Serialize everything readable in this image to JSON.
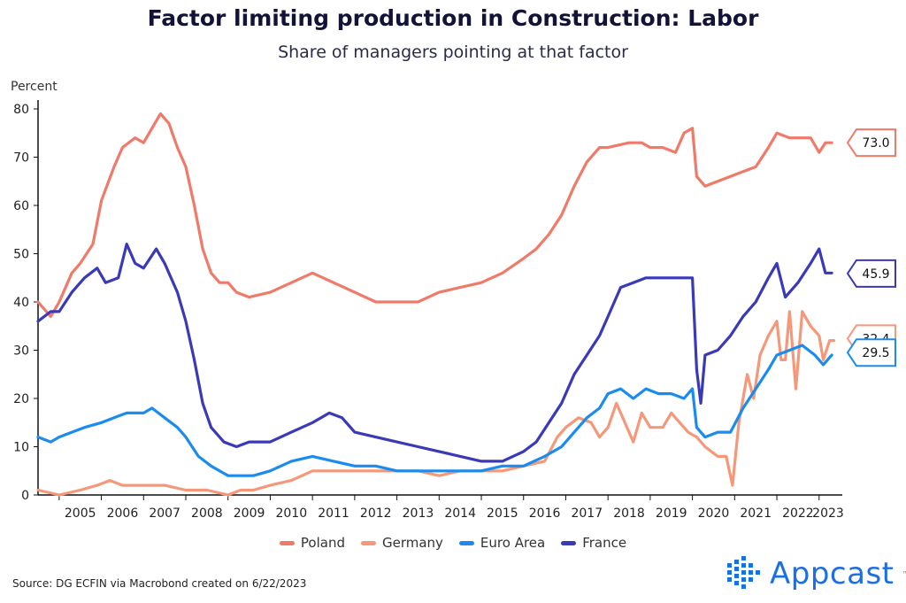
{
  "chart_data": {
    "type": "line",
    "title": "Factor limiting production in Construction: Labor",
    "subtitle": "Share of managers pointing at that factor",
    "ylabel": "Percent",
    "xlabel": "",
    "ylim": [
      0,
      80
    ],
    "yticks": [
      0,
      10,
      20,
      30,
      40,
      50,
      60,
      70,
      80
    ],
    "xlim": [
      2004.5,
      2023.55
    ],
    "xticks": [
      "2005",
      "2006",
      "2007",
      "2008",
      "2009",
      "2010",
      "2011",
      "2012",
      "2013",
      "2014",
      "2015",
      "2016",
      "2017",
      "2018",
      "2019",
      "2020",
      "2021",
      "2022",
      "2023"
    ],
    "grid": false,
    "legend_position": "bottom",
    "source": "Source: DG ECFIN via Macrobond created on 6/22/2023",
    "series": [
      {
        "name": "Poland",
        "color": "#f07a6a",
        "end_label": "73.0",
        "points": [
          [
            2004.5,
            40
          ],
          [
            2004.8,
            37
          ],
          [
            2005.0,
            40
          ],
          [
            2005.3,
            46
          ],
          [
            2005.5,
            48
          ],
          [
            2005.8,
            52
          ],
          [
            2006.0,
            61
          ],
          [
            2006.3,
            68
          ],
          [
            2006.5,
            72
          ],
          [
            2006.8,
            74
          ],
          [
            2007.0,
            73
          ],
          [
            2007.2,
            76
          ],
          [
            2007.4,
            79
          ],
          [
            2007.6,
            77
          ],
          [
            2007.8,
            72
          ],
          [
            2008.0,
            68
          ],
          [
            2008.2,
            60
          ],
          [
            2008.4,
            51
          ],
          [
            2008.6,
            46
          ],
          [
            2008.8,
            44
          ],
          [
            2009.0,
            44
          ],
          [
            2009.2,
            42
          ],
          [
            2009.5,
            41
          ],
          [
            2010.0,
            42
          ],
          [
            2010.5,
            44
          ],
          [
            2011.0,
            46
          ],
          [
            2011.5,
            44
          ],
          [
            2012.0,
            42
          ],
          [
            2012.5,
            40
          ],
          [
            2013.0,
            40
          ],
          [
            2013.5,
            40
          ],
          [
            2014.0,
            42
          ],
          [
            2014.5,
            43
          ],
          [
            2015.0,
            44
          ],
          [
            2015.5,
            46
          ],
          [
            2016.0,
            49
          ],
          [
            2016.3,
            51
          ],
          [
            2016.6,
            54
          ],
          [
            2016.9,
            58
          ],
          [
            2017.2,
            64
          ],
          [
            2017.5,
            69
          ],
          [
            2017.8,
            72
          ],
          [
            2018.0,
            72
          ],
          [
            2018.5,
            73
          ],
          [
            2018.8,
            73
          ],
          [
            2019.0,
            72
          ],
          [
            2019.3,
            72
          ],
          [
            2019.6,
            71
          ],
          [
            2019.8,
            75
          ],
          [
            2020.0,
            76
          ],
          [
            2020.1,
            66
          ],
          [
            2020.3,
            64
          ],
          [
            2020.6,
            65
          ],
          [
            2020.9,
            66
          ],
          [
            2021.2,
            67
          ],
          [
            2021.5,
            68
          ],
          [
            2021.8,
            72
          ],
          [
            2022.0,
            75
          ],
          [
            2022.3,
            74
          ],
          [
            2022.6,
            74
          ],
          [
            2022.8,
            74
          ],
          [
            2023.0,
            71
          ],
          [
            2023.15,
            73
          ],
          [
            2023.3,
            73
          ]
        ]
      },
      {
        "name": "Germany",
        "color": "#f5987a",
        "end_label": "32.4",
        "points": [
          [
            2004.5,
            1
          ],
          [
            2005.0,
            0
          ],
          [
            2005.5,
            1
          ],
          [
            2005.9,
            2
          ],
          [
            2006.2,
            3
          ],
          [
            2006.5,
            2
          ],
          [
            2007.0,
            2
          ],
          [
            2007.5,
            2
          ],
          [
            2008.0,
            1
          ],
          [
            2008.5,
            1
          ],
          [
            2009.0,
            0
          ],
          [
            2009.3,
            1
          ],
          [
            2009.6,
            1
          ],
          [
            2010.0,
            2
          ],
          [
            2010.5,
            3
          ],
          [
            2011.0,
            5
          ],
          [
            2011.5,
            5
          ],
          [
            2012.0,
            5
          ],
          [
            2012.5,
            5
          ],
          [
            2013.0,
            5
          ],
          [
            2013.5,
            5
          ],
          [
            2014.0,
            4
          ],
          [
            2014.5,
            5
          ],
          [
            2015.0,
            5
          ],
          [
            2015.5,
            5
          ],
          [
            2016.0,
            6
          ],
          [
            2016.5,
            7
          ],
          [
            2016.8,
            12
          ],
          [
            2017.0,
            14
          ],
          [
            2017.3,
            16
          ],
          [
            2017.6,
            15
          ],
          [
            2017.8,
            12
          ],
          [
            2018.0,
            14
          ],
          [
            2018.2,
            19
          ],
          [
            2018.4,
            15
          ],
          [
            2018.6,
            11
          ],
          [
            2018.8,
            17
          ],
          [
            2019.0,
            14
          ],
          [
            2019.3,
            14
          ],
          [
            2019.5,
            17
          ],
          [
            2019.7,
            15
          ],
          [
            2019.9,
            13
          ],
          [
            2020.1,
            12
          ],
          [
            2020.3,
            10
          ],
          [
            2020.6,
            8
          ],
          [
            2020.8,
            8
          ],
          [
            2020.95,
            2
          ],
          [
            2021.1,
            15
          ],
          [
            2021.3,
            25
          ],
          [
            2021.45,
            20
          ],
          [
            2021.6,
            29
          ],
          [
            2021.8,
            33
          ],
          [
            2022.0,
            36
          ],
          [
            2022.1,
            28
          ],
          [
            2022.2,
            28
          ],
          [
            2022.3,
            38
          ],
          [
            2022.45,
            22
          ],
          [
            2022.6,
            38
          ],
          [
            2022.8,
            35
          ],
          [
            2023.0,
            33
          ],
          [
            2023.1,
            28
          ],
          [
            2023.25,
            32
          ],
          [
            2023.35,
            32
          ]
        ]
      },
      {
        "name": "Euro Area",
        "color": "#1a8cf0",
        "end_label": "29.5",
        "points": [
          [
            2004.5,
            12
          ],
          [
            2004.8,
            11
          ],
          [
            2005.0,
            12
          ],
          [
            2005.3,
            13
          ],
          [
            2005.6,
            14
          ],
          [
            2006.0,
            15
          ],
          [
            2006.3,
            16
          ],
          [
            2006.6,
            17
          ],
          [
            2007.0,
            17
          ],
          [
            2007.2,
            18
          ],
          [
            2007.5,
            16
          ],
          [
            2007.8,
            14
          ],
          [
            2008.0,
            12
          ],
          [
            2008.3,
            8
          ],
          [
            2008.6,
            6
          ],
          [
            2009.0,
            4
          ],
          [
            2009.3,
            4
          ],
          [
            2009.6,
            4
          ],
          [
            2010.0,
            5
          ],
          [
            2010.5,
            7
          ],
          [
            2011.0,
            8
          ],
          [
            2011.5,
            7
          ],
          [
            2012.0,
            6
          ],
          [
            2012.5,
            6
          ],
          [
            2013.0,
            5
          ],
          [
            2013.5,
            5
          ],
          [
            2014.0,
            5
          ],
          [
            2014.5,
            5
          ],
          [
            2015.0,
            5
          ],
          [
            2015.5,
            6
          ],
          [
            2016.0,
            6
          ],
          [
            2016.5,
            8
          ],
          [
            2016.9,
            10
          ],
          [
            2017.2,
            13
          ],
          [
            2017.5,
            16
          ],
          [
            2017.8,
            18
          ],
          [
            2018.0,
            21
          ],
          [
            2018.3,
            22
          ],
          [
            2018.6,
            20
          ],
          [
            2018.9,
            22
          ],
          [
            2019.2,
            21
          ],
          [
            2019.5,
            21
          ],
          [
            2019.8,
            20
          ],
          [
            2020.0,
            22
          ],
          [
            2020.1,
            14
          ],
          [
            2020.3,
            12
          ],
          [
            2020.6,
            13
          ],
          [
            2020.9,
            13
          ],
          [
            2021.2,
            18
          ],
          [
            2021.5,
            22
          ],
          [
            2021.8,
            26
          ],
          [
            2022.0,
            29
          ],
          [
            2022.3,
            30
          ],
          [
            2022.6,
            31
          ],
          [
            2022.9,
            29
          ],
          [
            2023.1,
            27
          ],
          [
            2023.3,
            29
          ]
        ]
      },
      {
        "name": "France",
        "color": "#3a3ab8",
        "end_label": "45.9",
        "points": [
          [
            2004.5,
            36
          ],
          [
            2004.8,
            38
          ],
          [
            2005.0,
            38
          ],
          [
            2005.3,
            42
          ],
          [
            2005.6,
            45
          ],
          [
            2005.9,
            47
          ],
          [
            2006.1,
            44
          ],
          [
            2006.4,
            45
          ],
          [
            2006.6,
            52
          ],
          [
            2006.8,
            48
          ],
          [
            2007.0,
            47
          ],
          [
            2007.3,
            51
          ],
          [
            2007.5,
            48
          ],
          [
            2007.8,
            42
          ],
          [
            2008.0,
            36
          ],
          [
            2008.2,
            28
          ],
          [
            2008.4,
            19
          ],
          [
            2008.6,
            14
          ],
          [
            2008.9,
            11
          ],
          [
            2009.2,
            10
          ],
          [
            2009.5,
            11
          ],
          [
            2010.0,
            11
          ],
          [
            2010.5,
            13
          ],
          [
            2011.0,
            15
          ],
          [
            2011.4,
            17
          ],
          [
            2011.7,
            16
          ],
          [
            2012.0,
            13
          ],
          [
            2012.5,
            12
          ],
          [
            2013.0,
            11
          ],
          [
            2013.5,
            10
          ],
          [
            2014.0,
            9
          ],
          [
            2014.5,
            8
          ],
          [
            2015.0,
            7
          ],
          [
            2015.5,
            7
          ],
          [
            2016.0,
            9
          ],
          [
            2016.3,
            11
          ],
          [
            2016.6,
            15
          ],
          [
            2016.9,
            19
          ],
          [
            2017.2,
            25
          ],
          [
            2017.5,
            29
          ],
          [
            2017.8,
            33
          ],
          [
            2018.0,
            37
          ],
          [
            2018.3,
            43
          ],
          [
            2018.6,
            44
          ],
          [
            2018.9,
            45
          ],
          [
            2019.2,
            45
          ],
          [
            2019.5,
            45
          ],
          [
            2019.8,
            45
          ],
          [
            2020.0,
            45
          ],
          [
            2020.1,
            26
          ],
          [
            2020.2,
            19
          ],
          [
            2020.3,
            29
          ],
          [
            2020.6,
            30
          ],
          [
            2020.9,
            33
          ],
          [
            2021.2,
            37
          ],
          [
            2021.5,
            40
          ],
          [
            2021.8,
            45
          ],
          [
            2022.0,
            48
          ],
          [
            2022.2,
            41
          ],
          [
            2022.5,
            44
          ],
          [
            2022.8,
            48
          ],
          [
            2023.0,
            51
          ],
          [
            2023.15,
            46
          ],
          [
            2023.3,
            46
          ]
        ]
      }
    ]
  },
  "logo": {
    "text": "Appcast",
    "tm": "™"
  }
}
